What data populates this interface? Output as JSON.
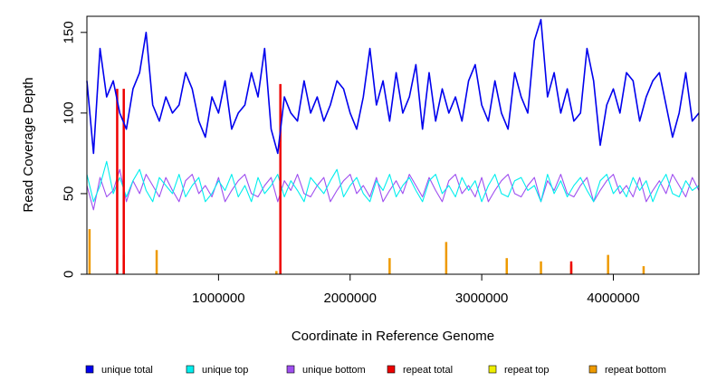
{
  "chart_data": {
    "type": "line",
    "title": "",
    "xlabel": "Coordinate in Reference Genome",
    "ylabel": "Read Coverage Depth",
    "xlim": [
      0,
      4650000
    ],
    "ylim": [
      0,
      160
    ],
    "x_ticks": [
      1000000,
      2000000,
      3000000,
      4000000
    ],
    "x_tick_labels": [
      "1000000",
      "2000000",
      "3000000",
      "4000000"
    ],
    "y_ticks": [
      0,
      50,
      100,
      150
    ],
    "y_tick_labels": [
      "0",
      "50",
      "100",
      "150"
    ],
    "grid": false,
    "legend_position": "bottom",
    "legend": [
      {
        "name": "unique total",
        "color": "#0000ee"
      },
      {
        "name": "unique top",
        "color": "#00eeee"
      },
      {
        "name": "unique bottom",
        "color": "#9f4fef"
      },
      {
        "name": "repeat total",
        "color": "#ee0000"
      },
      {
        "name": "repeat top",
        "color": "#eeee00"
      },
      {
        "name": "repeat bottom",
        "color": "#ee9a00"
      }
    ],
    "series": [
      {
        "name": "unique total",
        "color": "#0000ee",
        "x": [
          0,
          50000,
          100000,
          150000,
          200000,
          250000,
          300000,
          350000,
          400000,
          450000,
          500000,
          550000,
          600000,
          650000,
          700000,
          750000,
          800000,
          850000,
          900000,
          950000,
          1000000,
          1050000,
          1100000,
          1150000,
          1200000,
          1250000,
          1300000,
          1350000,
          1400000,
          1450000,
          1500000,
          1550000,
          1600000,
          1650000,
          1700000,
          1750000,
          1800000,
          1850000,
          1900000,
          1950000,
          2000000,
          2050000,
          2100000,
          2150000,
          2200000,
          2250000,
          2300000,
          2350000,
          2400000,
          2450000,
          2500000,
          2550000,
          2600000,
          2650000,
          2700000,
          2750000,
          2800000,
          2850000,
          2900000,
          2950000,
          3000000,
          3050000,
          3100000,
          3150000,
          3200000,
          3250000,
          3300000,
          3350000,
          3400000,
          3450000,
          3500000,
          3550000,
          3600000,
          3650000,
          3700000,
          3750000,
          3800000,
          3850000,
          3900000,
          3950000,
          4000000,
          4050000,
          4100000,
          4150000,
          4200000,
          4250000,
          4300000,
          4350000,
          4400000,
          4450000,
          4500000,
          4550000,
          4600000,
          4650000
        ],
        "y": [
          120,
          75,
          140,
          110,
          120,
          100,
          90,
          115,
          125,
          150,
          105,
          95,
          110,
          100,
          105,
          125,
          115,
          95,
          85,
          110,
          100,
          120,
          90,
          100,
          105,
          125,
          110,
          140,
          90,
          75,
          110,
          100,
          95,
          120,
          100,
          110,
          95,
          105,
          120,
          115,
          100,
          90,
          110,
          140,
          105,
          120,
          95,
          125,
          100,
          110,
          130,
          90,
          125,
          95,
          115,
          100,
          110,
          95,
          120,
          130,
          105,
          95,
          120,
          100,
          90,
          125,
          110,
          100,
          145,
          158,
          110,
          125,
          100,
          115,
          95,
          100,
          140,
          120,
          80,
          105,
          115,
          100,
          125,
          120,
          95,
          110,
          120,
          125,
          105,
          85,
          100,
          125,
          95,
          100
        ]
      },
      {
        "name": "unique top",
        "color": "#00eeee",
        "x": [
          0,
          50000,
          100000,
          150000,
          200000,
          250000,
          300000,
          350000,
          400000,
          450000,
          500000,
          550000,
          600000,
          650000,
          700000,
          750000,
          800000,
          850000,
          900000,
          950000,
          1000000,
          1050000,
          1100000,
          1150000,
          1200000,
          1250000,
          1300000,
          1350000,
          1400000,
          1450000,
          1500000,
          1550000,
          1600000,
          1650000,
          1700000,
          1750000,
          1800000,
          1850000,
          1900000,
          1950000,
          2000000,
          2050000,
          2100000,
          2150000,
          2200000,
          2250000,
          2300000,
          2350000,
          2400000,
          2450000,
          2500000,
          2550000,
          2600000,
          2650000,
          2700000,
          2750000,
          2800000,
          2850000,
          2900000,
          2950000,
          3000000,
          3050000,
          3100000,
          3150000,
          3200000,
          3250000,
          3300000,
          3350000,
          3400000,
          3450000,
          3500000,
          3550000,
          3600000,
          3650000,
          3700000,
          3750000,
          3800000,
          3850000,
          3900000,
          3950000,
          4000000,
          4050000,
          4100000,
          4150000,
          4200000,
          4250000,
          4300000,
          4350000,
          4400000,
          4450000,
          4500000,
          4550000,
          4600000,
          4650000
        ],
        "y": [
          62,
          45,
          55,
          70,
          50,
          60,
          48,
          58,
          65,
          52,
          45,
          60,
          55,
          50,
          62,
          48,
          55,
          60,
          45,
          50,
          58,
          52,
          62,
          48,
          55,
          45,
          60,
          50,
          55,
          62,
          48,
          58,
          52,
          45,
          60,
          55,
          50,
          58,
          65,
          48,
          55,
          60,
          50,
          45,
          58,
          52,
          62,
          48,
          55,
          60,
          52,
          45,
          58,
          62,
          50,
          55,
          48,
          60,
          52,
          58,
          45,
          55,
          62,
          50,
          48,
          58,
          60,
          52,
          55,
          45,
          62,
          50,
          58,
          48,
          55,
          60,
          52,
          45,
          58,
          62,
          50,
          55,
          48,
          60,
          52,
          58,
          45,
          55,
          62,
          50,
          48,
          58,
          52,
          55
        ]
      },
      {
        "name": "unique bottom",
        "color": "#9f4fef",
        "x": [
          0,
          50000,
          100000,
          150000,
          200000,
          250000,
          300000,
          350000,
          400000,
          450000,
          500000,
          550000,
          600000,
          650000,
          700000,
          750000,
          800000,
          850000,
          900000,
          950000,
          1000000,
          1050000,
          1100000,
          1150000,
          1200000,
          1250000,
          1300000,
          1350000,
          1400000,
          1450000,
          1500000,
          1550000,
          1600000,
          1650000,
          1700000,
          1750000,
          1800000,
          1850000,
          1900000,
          1950000,
          2000000,
          2050000,
          2100000,
          2150000,
          2200000,
          2250000,
          2300000,
          2350000,
          2400000,
          2450000,
          2500000,
          2550000,
          2600000,
          2650000,
          2700000,
          2750000,
          2800000,
          2850000,
          2900000,
          2950000,
          3000000,
          3050000,
          3100000,
          3150000,
          3200000,
          3250000,
          3300000,
          3350000,
          3400000,
          3450000,
          3500000,
          3550000,
          3600000,
          3650000,
          3700000,
          3750000,
          3800000,
          3850000,
          3900000,
          3950000,
          4000000,
          4050000,
          4100000,
          4150000,
          4200000,
          4250000,
          4300000,
          4350000,
          4400000,
          4450000,
          4500000,
          4550000,
          4600000,
          4650000
        ],
        "y": [
          55,
          40,
          60,
          48,
          52,
          65,
          45,
          58,
          50,
          62,
          55,
          48,
          60,
          52,
          45,
          58,
          62,
          50,
          55,
          48,
          60,
          45,
          52,
          58,
          62,
          50,
          48,
          55,
          60,
          45,
          58,
          52,
          62,
          50,
          48,
          55,
          60,
          45,
          52,
          58,
          62,
          50,
          55,
          48,
          60,
          45,
          52,
          58,
          50,
          62,
          55,
          48,
          60,
          52,
          45,
          58,
          62,
          50,
          55,
          48,
          60,
          45,
          52,
          58,
          62,
          50,
          48,
          55,
          60,
          45,
          58,
          52,
          62,
          50,
          48,
          55,
          60,
          45,
          52,
          58,
          62,
          50,
          55,
          48,
          60,
          45,
          52,
          58,
          50,
          62,
          55,
          48,
          60,
          52
        ]
      },
      {
        "name": "repeat total",
        "color": "#ee0000",
        "x": [
          230000,
          280000,
          1470000,
          3680000
        ],
        "y": [
          115,
          115,
          118,
          8
        ]
      },
      {
        "name": "repeat top",
        "color": "#eeee00",
        "x": [],
        "y": []
      },
      {
        "name": "repeat bottom",
        "color": "#ee9a00",
        "x": [
          20000,
          280000,
          530000,
          1440000,
          2300000,
          2730000,
          3190000,
          3450000,
          3680000,
          3960000,
          4230000
        ],
        "y": [
          28,
          12,
          15,
          2,
          10,
          20,
          10,
          8,
          6,
          12,
          5
        ]
      }
    ]
  }
}
